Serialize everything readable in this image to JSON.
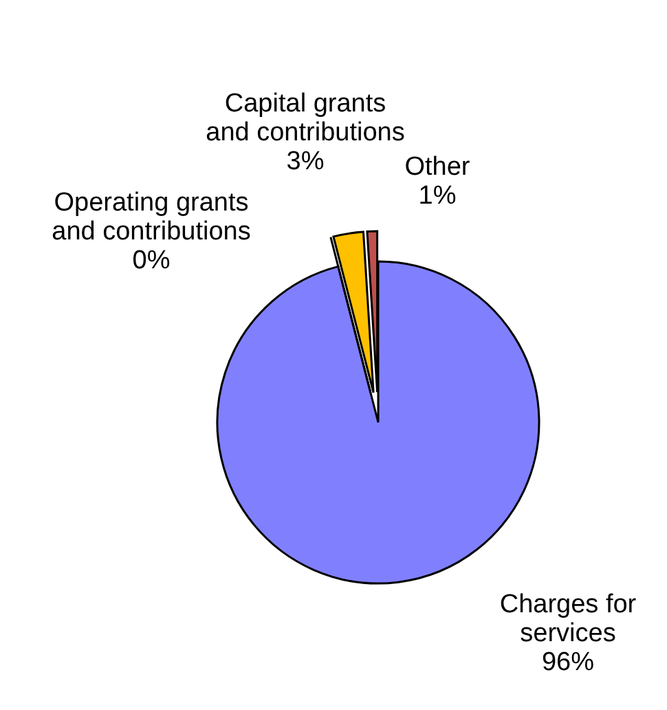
{
  "chart_data": {
    "type": "pie",
    "categories": [
      "Charges for services",
      "Operating grants and contributions",
      "Capital grants and contributions",
      "Other"
    ],
    "values": [
      96,
      0,
      3,
      1
    ],
    "colors": [
      "#8080ff",
      "#ffffff",
      "#ffc000",
      "#c0504d"
    ],
    "value_labels": [
      "96%",
      "0%",
      "3%",
      "1%"
    ]
  }
}
